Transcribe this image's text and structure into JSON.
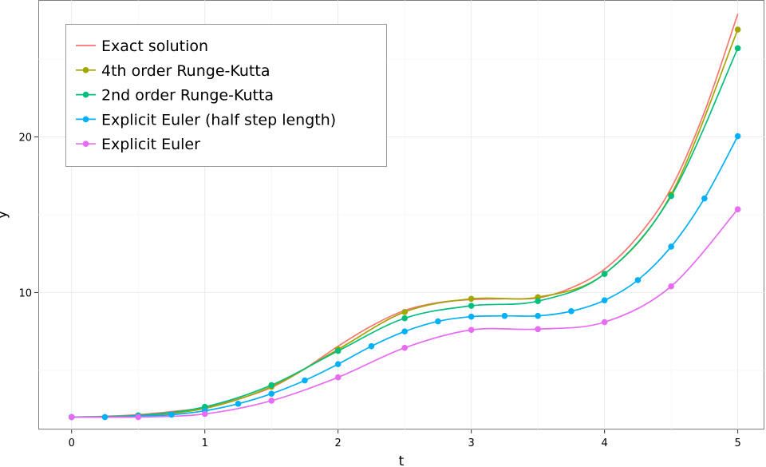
{
  "chart_data": {
    "type": "line",
    "xlabel": "t",
    "ylabel": "y",
    "xlim": [
      -0.25,
      5.2
    ],
    "ylim": [
      1.2,
      28.8
    ],
    "xticks": [
      0,
      1,
      2,
      3,
      4,
      5
    ],
    "xtick_labels": [
      "0",
      "1",
      "2",
      "3",
      "4",
      "5"
    ],
    "yticks": [
      10,
      20
    ],
    "ytick_labels": [
      "10",
      "20"
    ],
    "grid": true,
    "legend_position": "top-left",
    "series": [
      {
        "name": "Exact solution",
        "color": "#F8766D",
        "markers": false,
        "x": [
          0,
          0.25,
          0.5,
          0.75,
          1,
          1.25,
          1.5,
          1.75,
          2,
          2.25,
          2.5,
          2.75,
          3,
          3.25,
          3.5,
          3.75,
          4,
          4.25,
          4.5,
          4.75,
          5
        ],
        "y": [
          2.0,
          2.05,
          2.15,
          2.35,
          2.6,
          3.15,
          3.9,
          5.1,
          6.55,
          7.85,
          8.85,
          9.35,
          9.55,
          9.6,
          9.65,
          10.3,
          11.5,
          13.6,
          16.7,
          21.6,
          27.9
        ]
      },
      {
        "name": "4th order Runge-Kutta",
        "color": "#A3A500",
        "markers": true,
        "x": [
          0,
          0.5,
          1,
          1.5,
          2,
          2.5,
          3,
          3.5,
          4,
          4.5,
          5
        ],
        "y": [
          2.0,
          2.1,
          2.55,
          3.95,
          6.35,
          8.75,
          9.6,
          9.7,
          11.2,
          16.3,
          26.9
        ]
      },
      {
        "name": "2nd order Runge-Kutta",
        "color": "#00BF7D",
        "markers": true,
        "x": [
          0,
          0.5,
          1,
          1.5,
          2,
          2.5,
          3,
          3.5,
          4,
          4.5,
          5
        ],
        "y": [
          2.0,
          2.1,
          2.65,
          4.05,
          6.25,
          8.35,
          9.15,
          9.45,
          11.2,
          16.2,
          25.7
        ]
      },
      {
        "name": "Explicit Euler (half step length)",
        "color": "#00B0F6",
        "markers": true,
        "x": [
          0,
          0.25,
          0.5,
          0.75,
          1,
          1.25,
          1.5,
          1.75,
          2,
          2.25,
          2.5,
          2.75,
          3,
          3.25,
          3.5,
          3.75,
          4,
          4.25,
          4.5,
          4.75,
          5
        ],
        "y": [
          2.0,
          2.0,
          2.05,
          2.15,
          2.4,
          2.85,
          3.5,
          4.35,
          5.4,
          6.55,
          7.5,
          8.15,
          8.45,
          8.5,
          8.5,
          8.8,
          9.5,
          10.8,
          12.95,
          16.05,
          20.05
        ]
      },
      {
        "name": "Explicit Euler",
        "color": "#E76BF3",
        "markers": true,
        "x": [
          0,
          0.5,
          1,
          1.5,
          2,
          2.5,
          3,
          3.5,
          4,
          4.5,
          5
        ],
        "y": [
          2.0,
          2.0,
          2.2,
          3.05,
          4.55,
          6.45,
          7.6,
          7.65,
          8.1,
          10.4,
          15.35
        ]
      }
    ]
  }
}
